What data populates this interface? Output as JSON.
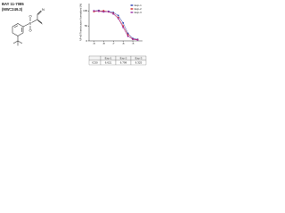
{
  "compound": {
    "name": "BAY 11-7085",
    "mw": "(MW=249.3)"
  },
  "structure": {
    "atoms": [
      "S",
      "O",
      "O",
      "N"
    ]
  },
  "chart_data": {
    "type": "line",
    "y_label": "NF-κB Translocation Normalized (%)",
    "x": [
      -9,
      -8.5,
      -8,
      -7.5,
      -7,
      -6.5,
      -6,
      -5.5,
      -5,
      -4.5
    ],
    "series": [
      {
        "name": "Exp-1",
        "color": "#2b3fb0",
        "values": [
          100,
          102,
          98,
          99,
          95,
          85,
          60,
          25,
          8,
          5
        ]
      },
      {
        "name": "Exp-2",
        "color": "#d42a2a",
        "values": [
          98,
          100,
          101,
          97,
          92,
          78,
          50,
          20,
          6,
          4
        ]
      },
      {
        "name": "Exp-3",
        "color": "#9b2fa6",
        "values": [
          101,
          99,
          97,
          98,
          90,
          75,
          45,
          15,
          5,
          3
        ]
      }
    ],
    "xlim": [
      -9.5,
      -4
    ],
    "xticks": [
      -9,
      -8,
      -7,
      -6,
      -5
    ],
    "ylim": [
      0,
      125
    ],
    "yticks": [
      0,
      50,
      100
    ],
    "legend": "upper right"
  },
  "table": {
    "header": [
      "",
      "Exp-1",
      "Exp-2",
      "Exp-3"
    ],
    "rows": [
      [
        "IC50",
        "6.621",
        "6.798",
        "6.325"
      ]
    ]
  }
}
